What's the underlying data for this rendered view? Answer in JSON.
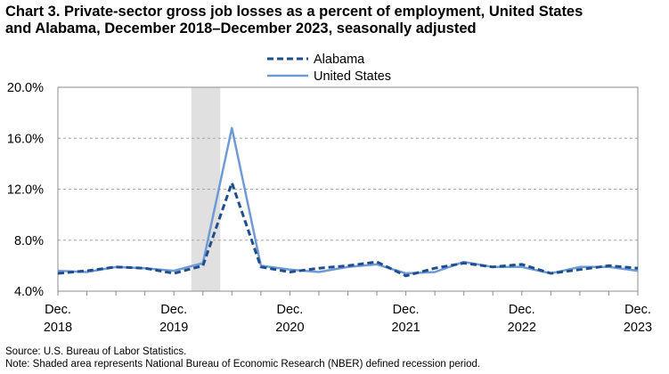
{
  "title_lines": [
    "Chart 3. Private-sector gross job losses as a percent of employment, United States",
    "and Alabama, December 2018–December 2023, seasonally adjusted"
  ],
  "footer": {
    "source": "Source: U.S. Bureau of Labor Statistics.",
    "note": "Note: Shaded area represents National Bureau of Economic Research (NBER) defined  recession period."
  },
  "chart_data": {
    "type": "line",
    "x": [
      "Dec 2018",
      "Mar 2019",
      "Jun 2019",
      "Sep 2019",
      "Dec 2019",
      "Mar 2020",
      "Jun 2020",
      "Sep 2020",
      "Dec 2020",
      "Mar 2021",
      "Jun 2021",
      "Sep 2021",
      "Dec 2021",
      "Mar 2022",
      "Jun 2022",
      "Sep 2022",
      "Dec 2022",
      "Mar 2023",
      "Jun 2023",
      "Sep 2023",
      "Dec 2023"
    ],
    "x_tick_labels": [
      {
        "month": "Dec.",
        "year": "2018",
        "index": 0
      },
      {
        "month": "Dec.",
        "year": "2019",
        "index": 4
      },
      {
        "month": "Dec.",
        "year": "2020",
        "index": 8
      },
      {
        "month": "Dec.",
        "year": "2021",
        "index": 12
      },
      {
        "month": "Dec.",
        "year": "2022",
        "index": 16
      },
      {
        "month": "Dec.",
        "year": "2023",
        "index": 20
      }
    ],
    "y_tick_labels": [
      "4.0%",
      "8.0%",
      "12.0%",
      "16.0%",
      "20.0%"
    ],
    "y_ticks": [
      4,
      8,
      12,
      16,
      20
    ],
    "ylim": [
      4,
      20
    ],
    "grid": true,
    "legend_placement": "top-center",
    "recession_shade": {
      "start_index": 4.6,
      "end_index": 5.6
    },
    "series": [
      {
        "name": "Alabama",
        "style": "dashed",
        "color": "#1f4e8c",
        "values": [
          5.4,
          5.6,
          5.9,
          5.8,
          5.4,
          6.0,
          12.5,
          5.9,
          5.5,
          5.8,
          6.0,
          6.3,
          5.2,
          5.8,
          6.2,
          5.9,
          6.1,
          5.4,
          5.7,
          6.0,
          5.8
        ]
      },
      {
        "name": "United States",
        "style": "solid",
        "color": "#6f9ad6",
        "values": [
          5.6,
          5.5,
          5.9,
          5.8,
          5.6,
          6.2,
          16.8,
          6.0,
          5.7,
          5.5,
          5.9,
          6.1,
          5.4,
          5.5,
          6.3,
          5.9,
          5.9,
          5.4,
          5.9,
          5.9,
          5.6
        ]
      }
    ]
  }
}
